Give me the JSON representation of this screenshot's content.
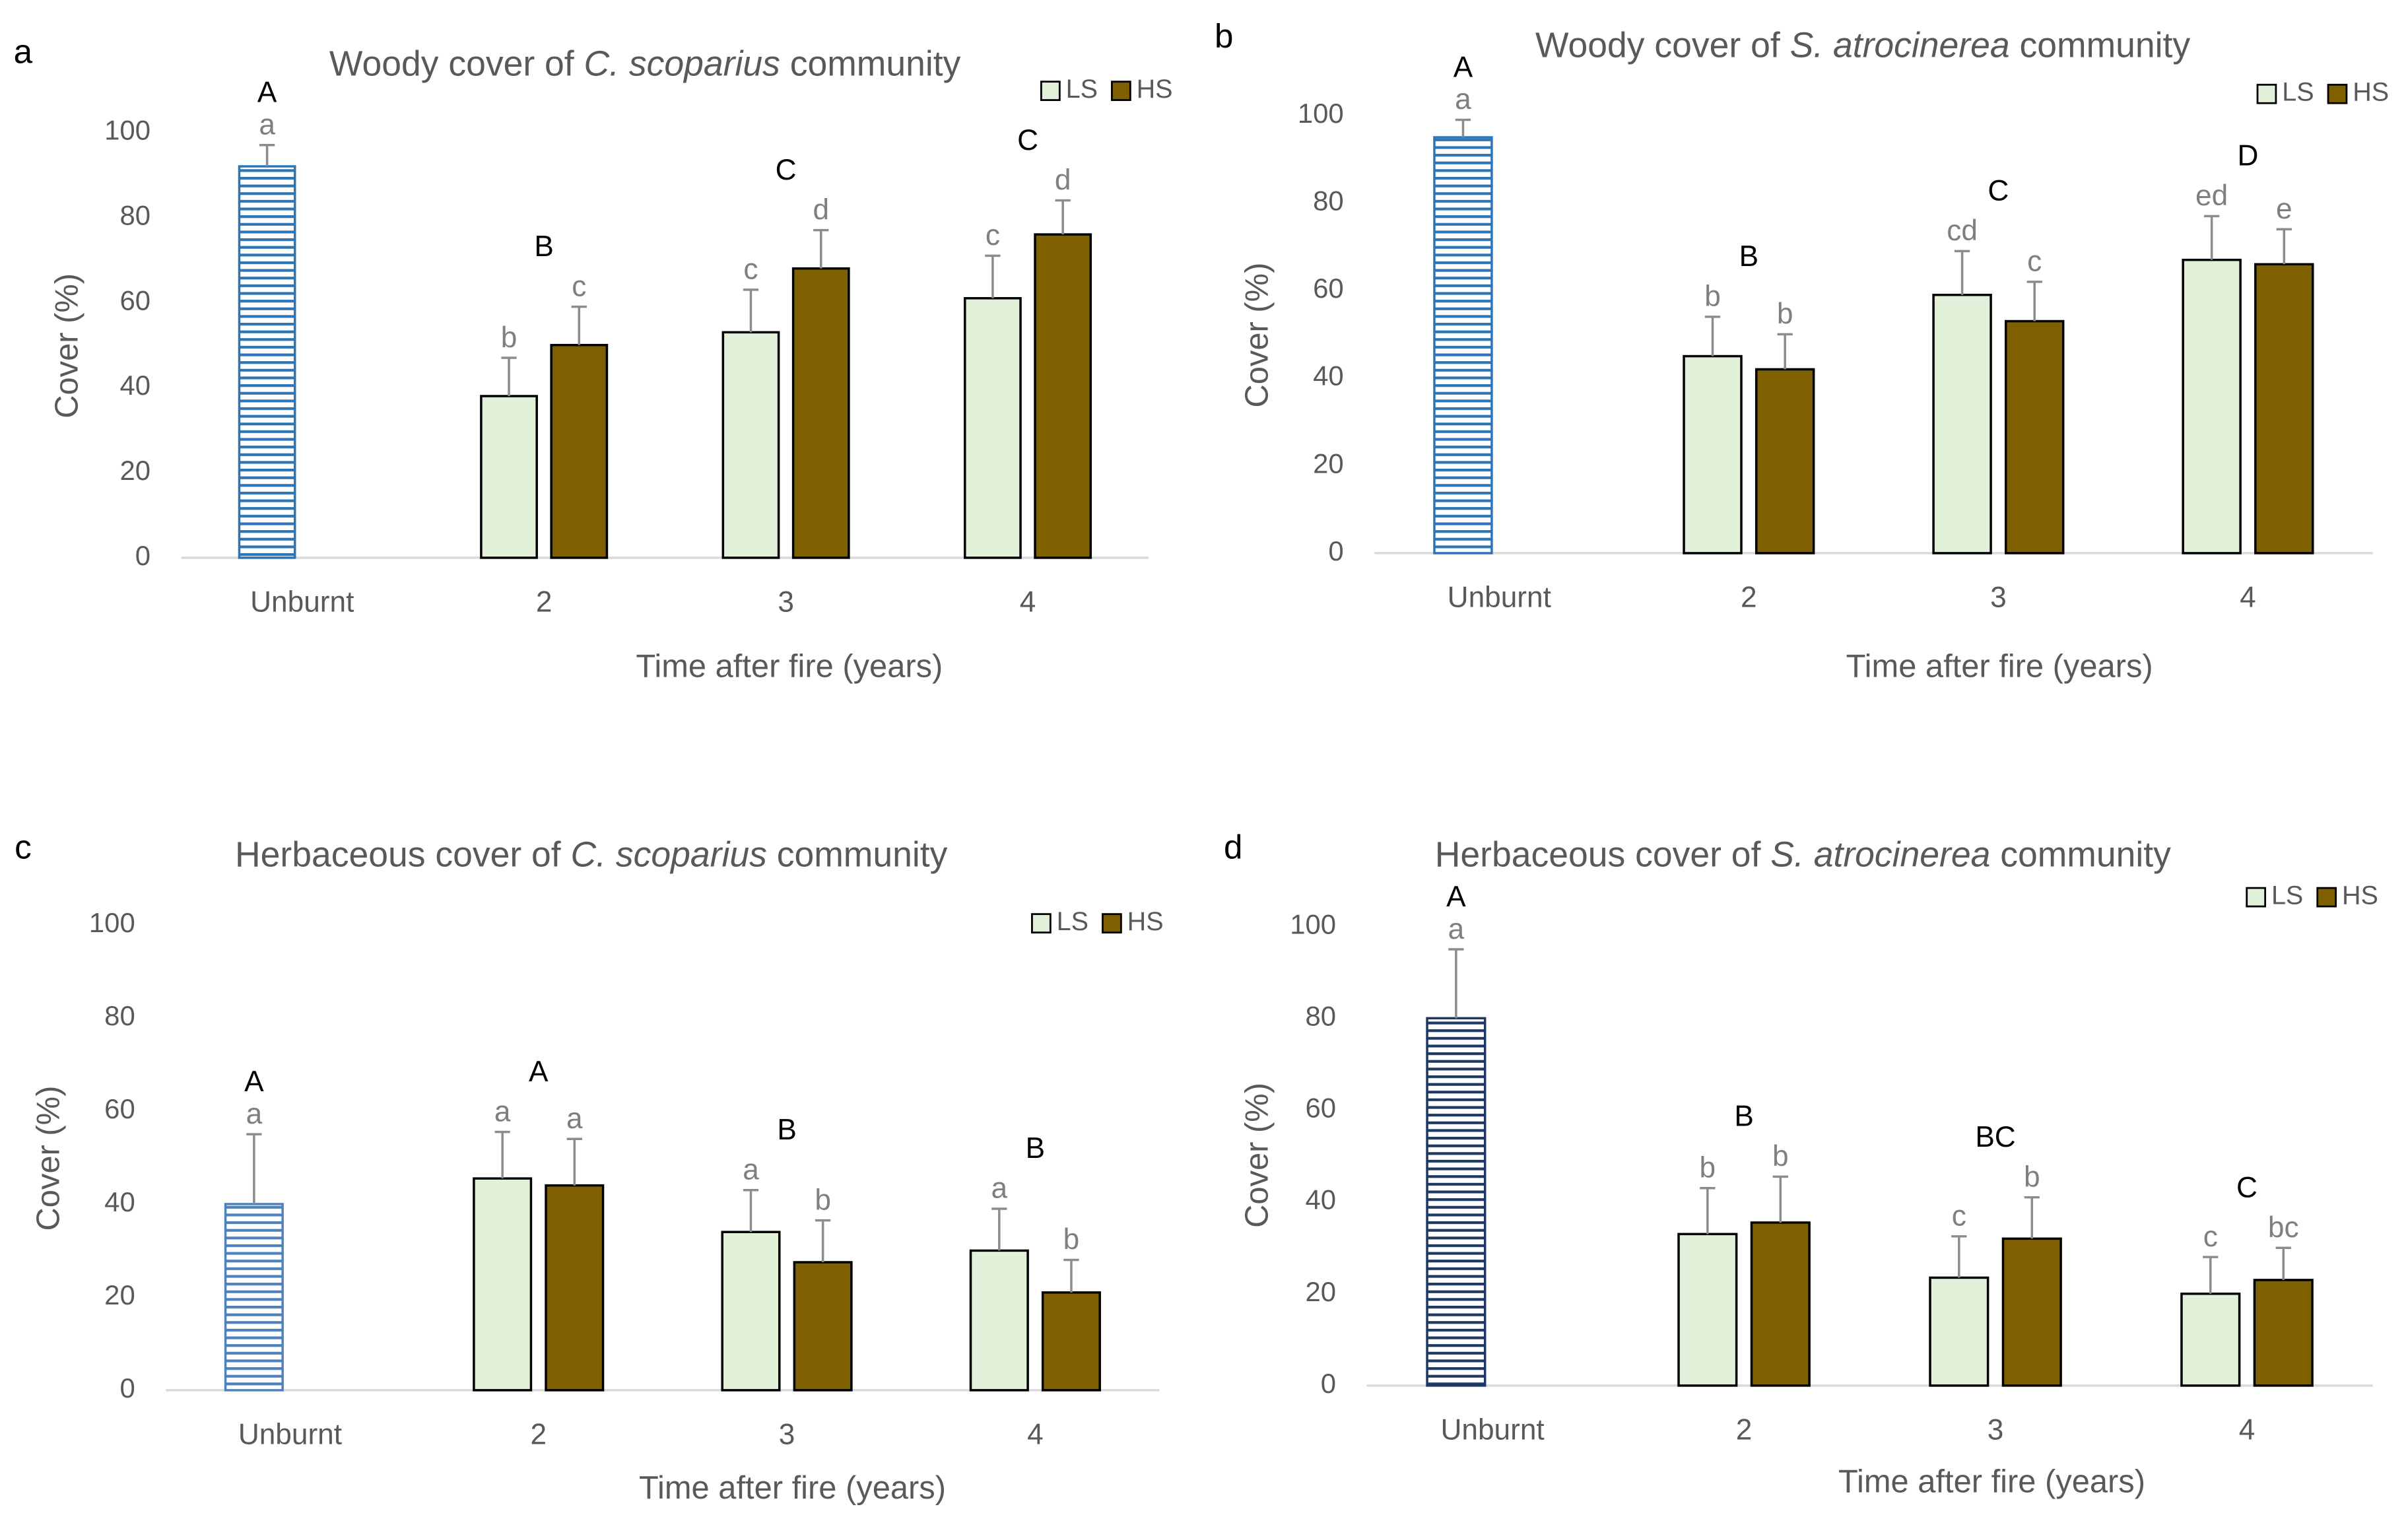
{
  "chart_data": [
    {
      "type": "bar",
      "panel_label": "a",
      "title_parts": [
        "Woody cover of ",
        "C. scoparius",
        " community"
      ],
      "xlabel": "Time after fire (years)",
      "ylabel": "Cover (%)",
      "categories": [
        "Unburnt",
        "2",
        "3",
        "4"
      ],
      "ylim": [
        0,
        100
      ],
      "yticks": [
        0,
        20,
        40,
        60,
        80,
        100
      ],
      "unburnt": {
        "color": "#2e75b6",
        "value": 92,
        "error": 5,
        "letter": "a"
      },
      "series": [
        {
          "name": "LS",
          "color": "#e2f0d9",
          "values": [
            null,
            38,
            53,
            61
          ],
          "errors": [
            null,
            9,
            10,
            10
          ],
          "letters": [
            null,
            "b",
            "c",
            "c"
          ]
        },
        {
          "name": "HS",
          "color": "#7f6000",
          "values": [
            null,
            50,
            68,
            76
          ],
          "errors": [
            null,
            9,
            9,
            8
          ],
          "letters": [
            null,
            "c",
            "d",
            "d"
          ]
        }
      ],
      "group_letters": [
        "A",
        "B",
        "C",
        "C"
      ],
      "legend": "top-right"
    },
    {
      "type": "bar",
      "panel_label": "b",
      "title_parts": [
        "Woody cover of ",
        "S. atrocinerea",
        " community"
      ],
      "xlabel": "Time after fire (years)",
      "ylabel": "Cover (%)",
      "categories": [
        "Unburnt",
        "2",
        "3",
        "4"
      ],
      "ylim": [
        0,
        100
      ],
      "yticks": [
        0,
        20,
        40,
        60,
        80,
        100
      ],
      "unburnt": {
        "color": "#2e75b6",
        "value": 95,
        "error": 4,
        "letter": "a"
      },
      "series": [
        {
          "name": "LS",
          "color": "#e2f0d9",
          "values": [
            null,
            45,
            59,
            67
          ],
          "errors": [
            null,
            9,
            10,
            10
          ],
          "letters": [
            null,
            "b",
            "cd",
            "ed"
          ]
        },
        {
          "name": "HS",
          "color": "#7f6000",
          "values": [
            null,
            42,
            53,
            66
          ],
          "errors": [
            null,
            8,
            9,
            8
          ],
          "letters": [
            null,
            "b",
            "c",
            "e"
          ]
        }
      ],
      "group_letters": [
        "A",
        "B",
        "C",
        "D"
      ],
      "legend": "top-right"
    },
    {
      "type": "bar",
      "panel_label": "c",
      "title_parts": [
        "Herbaceous cover of ",
        "C. scoparius",
        " community"
      ],
      "xlabel": "Time after fire (years)",
      "ylabel": "Cover (%)",
      "categories": [
        "Unburnt",
        "2",
        "3",
        "4"
      ],
      "ylim": [
        0,
        100
      ],
      "yticks": [
        0,
        20,
        40,
        60,
        80,
        100
      ],
      "unburnt": {
        "color": "#4f81bd",
        "value": 40,
        "error": 15,
        "letter": "a"
      },
      "series": [
        {
          "name": "LS",
          "color": "#e2f0d9",
          "values": [
            null,
            45.5,
            34,
            30
          ],
          "errors": [
            null,
            10,
            9,
            9
          ],
          "letters": [
            null,
            "a",
            "a",
            "a"
          ]
        },
        {
          "name": "HS",
          "color": "#7f6000",
          "values": [
            null,
            44,
            27.5,
            21
          ],
          "errors": [
            null,
            10,
            9,
            7
          ],
          "letters": [
            null,
            "a",
            "b",
            "b"
          ]
        }
      ],
      "group_letters": [
        "A",
        "A",
        "B",
        "B"
      ],
      "legend": "top-right"
    },
    {
      "type": "bar",
      "panel_label": "d",
      "title_parts": [
        "Herbaceous cover of ",
        "S. atrocinerea",
        " community"
      ],
      "xlabel": "Time after fire (years)",
      "ylabel": "Cover (%)",
      "categories": [
        "Unburnt",
        "2",
        "3",
        "4"
      ],
      "ylim": [
        0,
        100
      ],
      "yticks": [
        0,
        20,
        40,
        60,
        80,
        100
      ],
      "unburnt": {
        "color": "#1f3864",
        "value": 80,
        "error": 15,
        "letter": "a"
      },
      "series": [
        {
          "name": "LS",
          "color": "#e2f0d9",
          "values": [
            null,
            33,
            23.5,
            20
          ],
          "errors": [
            null,
            10,
            9,
            8
          ],
          "letters": [
            null,
            "b",
            "c",
            "c"
          ]
        },
        {
          "name": "HS",
          "color": "#7f6000",
          "values": [
            null,
            35.5,
            32,
            23
          ],
          "errors": [
            null,
            10,
            9,
            7
          ],
          "letters": [
            null,
            "b",
            "b",
            "bc"
          ]
        }
      ],
      "group_letters": [
        "A",
        "B",
        "BC",
        "C"
      ],
      "legend": "top-right"
    }
  ]
}
